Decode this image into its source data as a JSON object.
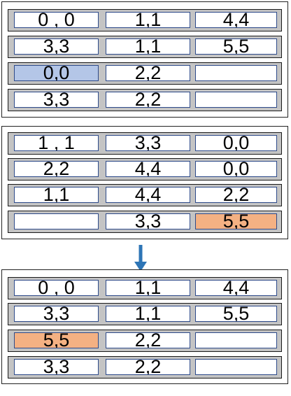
{
  "colors": {
    "selected_blue": "#b4c6e7",
    "highlight_orange": "#f4b183",
    "arrow_blue": "#2e75b6"
  },
  "panels": [
    {
      "rows": [
        {
          "cells": [
            {
              "text": "0 , 0"
            },
            {
              "text": "1,1"
            },
            {
              "text": "4,4"
            }
          ]
        },
        {
          "cells": [
            {
              "text": "3,3"
            },
            {
              "text": "1,1"
            },
            {
              "text": "5,5"
            }
          ]
        },
        {
          "cells": [
            {
              "text": "0,0",
              "highlight": "selected_blue"
            },
            {
              "text": "2,2"
            },
            {
              "text": ""
            }
          ]
        },
        {
          "cells": [
            {
              "text": "3,3"
            },
            {
              "text": "2,2"
            },
            {
              "text": ""
            }
          ]
        }
      ]
    },
    {
      "rows": [
        {
          "cells": [
            {
              "text": "1 , 1"
            },
            {
              "text": "3,3"
            },
            {
              "text": "0,0"
            }
          ]
        },
        {
          "cells": [
            {
              "text": "2,2"
            },
            {
              "text": "4,4"
            },
            {
              "text": "0,0"
            }
          ]
        },
        {
          "cells": [
            {
              "text": "1,1"
            },
            {
              "text": "4,4"
            },
            {
              "text": "2,2"
            }
          ]
        },
        {
          "cells": [
            {
              "text": ""
            },
            {
              "text": "3,3"
            },
            {
              "text": "5,5",
              "highlight": "highlight_orange"
            }
          ]
        }
      ]
    },
    {
      "rows": [
        {
          "cells": [
            {
              "text": "0 , 0"
            },
            {
              "text": "1,1"
            },
            {
              "text": "4,4"
            }
          ]
        },
        {
          "cells": [
            {
              "text": "3,3"
            },
            {
              "text": "1,1"
            },
            {
              "text": "5,5"
            }
          ]
        },
        {
          "cells": [
            {
              "text": "5,5",
              "highlight": "highlight_orange"
            },
            {
              "text": "2,2"
            },
            {
              "text": ""
            }
          ]
        },
        {
          "cells": [
            {
              "text": "3,3"
            },
            {
              "text": "2,2"
            },
            {
              "text": ""
            }
          ]
        }
      ]
    }
  ]
}
